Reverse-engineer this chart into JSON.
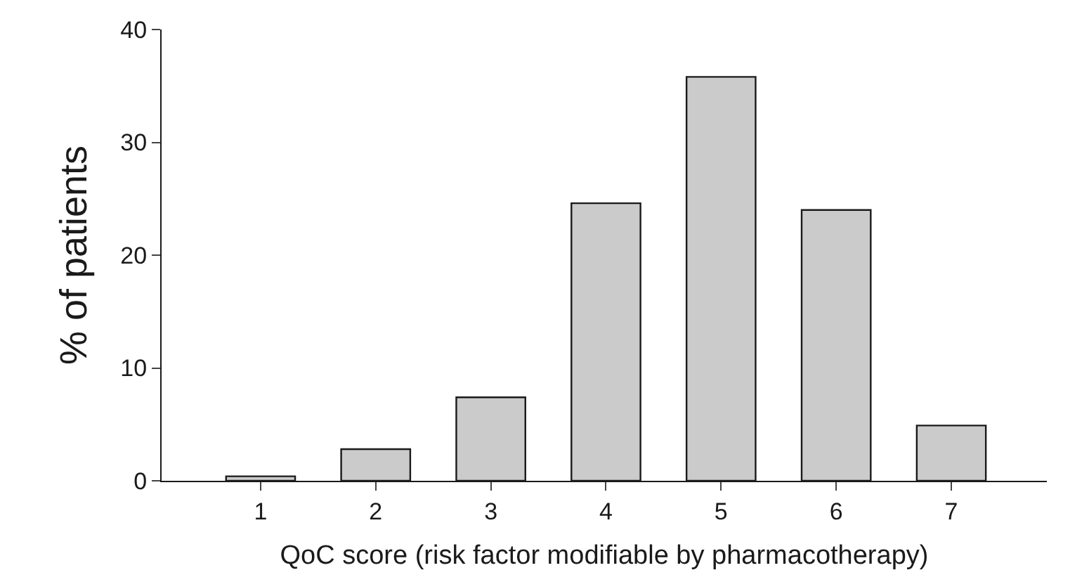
{
  "chart_data": {
    "type": "bar",
    "xlabel": "QoC score (risk factor modifiable by pharmacotherapy)",
    "ylabel": "% of patients",
    "categories": [
      "1",
      "2",
      "3",
      "4",
      "5",
      "6",
      "7"
    ],
    "values": [
      0.4,
      2.8,
      7.4,
      24.6,
      35.8,
      24.0,
      4.9
    ],
    "color": "#cbcbcb",
    "ylim": [
      0,
      40
    ],
    "yticks": [
      0,
      10,
      20,
      30,
      40
    ]
  }
}
